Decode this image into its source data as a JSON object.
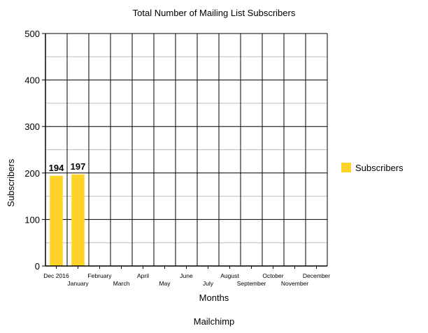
{
  "chart_data": {
    "type": "bar",
    "title": "Total Number of Mailing List Subscribers",
    "subtitle": "Mailchimp",
    "xlabel": "Months",
    "ylabel": "Subscribers",
    "ylim": [
      0,
      500
    ],
    "yticks": [
      0,
      100,
      200,
      300,
      400,
      500
    ],
    "grid": true,
    "legend_position": "right",
    "categories": [
      "Dec 2016",
      "January",
      "February",
      "March",
      "April",
      "May",
      "June",
      "July",
      "August",
      "September",
      "October",
      "November",
      "December"
    ],
    "series": [
      {
        "name": "Subscribers",
        "color": "#FFD42A",
        "values": [
          194,
          197,
          null,
          null,
          null,
          null,
          null,
          null,
          null,
          null,
          null,
          null,
          null
        ]
      }
    ]
  }
}
